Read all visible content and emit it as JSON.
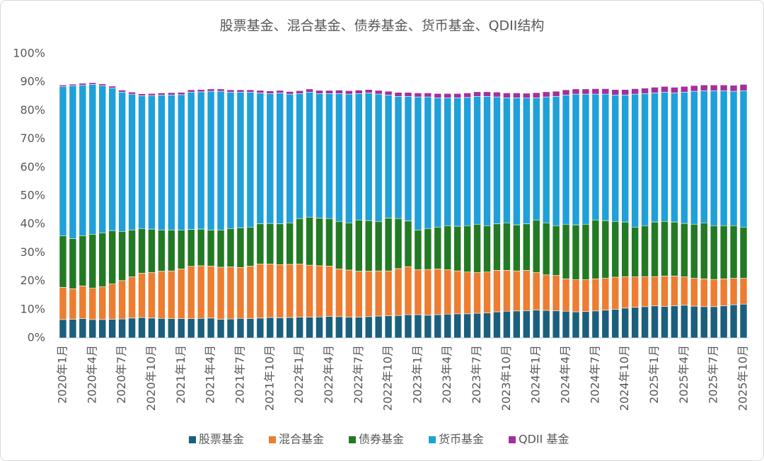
{
  "chart_data": {
    "type": "stacked-bar",
    "title": "股票基金、混合基金、债券基金、货币基金、QDII结构",
    "categories": [
      "2020年1月",
      null,
      null,
      "2020年4月",
      null,
      null,
      "2020年7月",
      null,
      null,
      "2020年10月",
      null,
      null,
      "2021年1月",
      null,
      null,
      "2021年4月",
      null,
      null,
      "2021年7月",
      null,
      null,
      "2021年10月",
      null,
      null,
      "2022年1月",
      null,
      null,
      "2022年4月",
      null,
      null,
      "2022年7月",
      null,
      null,
      "2022年10月",
      null,
      null,
      "2023年1月",
      null,
      null,
      "2023年4月",
      null,
      null,
      "2023年7月",
      null,
      null,
      "2023年10月",
      null,
      null,
      "2024年1月",
      null,
      null,
      "2024年4月",
      null,
      null,
      "2024年7月",
      null,
      null,
      "2024年10月",
      null,
      null,
      "2025年1月",
      null,
      null,
      "2025年4月",
      null,
      null,
      "2025年7月",
      null,
      null,
      "2025年10月"
    ],
    "series": [
      {
        "name": "股票基金",
        "color": "#1b5f7d",
        "values": [
          6.5,
          6.6,
          6.8,
          6.5,
          6.5,
          6.6,
          6.7,
          7.0,
          7.2,
          7.0,
          6.9,
          6.8,
          6.8,
          6.8,
          6.9,
          7.0,
          6.6,
          6.7,
          6.9,
          6.8,
          7.0,
          7.2,
          7.1,
          7.2,
          7.3,
          7.3,
          7.4,
          7.6,
          7.5,
          7.3,
          7.3,
          7.5,
          7.7,
          7.8,
          7.9,
          8.2,
          8.2,
          8.0,
          8.2,
          8.4,
          8.5,
          8.5,
          8.7,
          8.8,
          9.2,
          9.4,
          9.5,
          9.6,
          9.8,
          9.7,
          9.6,
          9.4,
          9.2,
          9.3,
          9.5,
          9.8,
          10.1,
          10.5,
          10.8,
          11.0,
          11.3,
          11.1,
          11.3,
          11.5,
          11.2,
          11.0,
          11.0,
          11.3,
          11.7,
          11.9
        ]
      },
      {
        "name": "混合基金",
        "color": "#ed7d31",
        "values": [
          11.3,
          10.7,
          11.5,
          11.0,
          11.5,
          12.4,
          13.5,
          14.5,
          15.6,
          16.0,
          16.6,
          16.8,
          17.5,
          18.4,
          18.5,
          18.3,
          18.3,
          18.3,
          17.9,
          18.5,
          19.0,
          18.8,
          18.7,
          18.7,
          18.7,
          18.3,
          18.0,
          17.7,
          16.8,
          16.6,
          16.2,
          16.0,
          15.9,
          15.8,
          16.5,
          16.9,
          15.8,
          16.1,
          16.1,
          15.6,
          15.1,
          14.7,
          14.3,
          14.4,
          14.6,
          14.4,
          14.1,
          14.2,
          13.2,
          12.5,
          12.4,
          11.4,
          11.3,
          11.2,
          11.3,
          11.2,
          11.3,
          11.1,
          10.7,
          10.6,
          10.3,
          10.7,
          10.5,
          10.0,
          9.8,
          9.8,
          9.6,
          9.5,
          9.3,
          9.1
        ]
      },
      {
        "name": "债券基金",
        "color": "#237a24",
        "values": [
          18.2,
          17.7,
          17.7,
          19.0,
          19.0,
          18.8,
          17.3,
          16.5,
          15.7,
          15.3,
          14.5,
          14.4,
          13.7,
          13.0,
          12.9,
          12.7,
          13.1,
          13.5,
          14.0,
          13.7,
          14.2,
          14.3,
          14.4,
          14.6,
          16.0,
          16.9,
          16.8,
          16.7,
          16.7,
          16.6,
          18.0,
          17.8,
          17.4,
          18.6,
          17.6,
          16.1,
          14.0,
          14.4,
          14.7,
          15.5,
          15.7,
          16.3,
          17.0,
          16.3,
          16.4,
          16.7,
          16.2,
          16.4,
          18.5,
          18.3,
          17.5,
          19.2,
          19.3,
          19.5,
          20.7,
          20.3,
          19.6,
          19.2,
          17.5,
          17.9,
          19.2,
          19.2,
          19.0,
          18.8,
          19.0,
          19.7,
          18.9,
          18.7,
          18.5,
          18.0
        ]
      },
      {
        "name": "货币基金",
        "color": "#1fa0d9",
        "values": [
          52.5,
          53.8,
          53.0,
          52.7,
          51.8,
          50.2,
          49.0,
          47.8,
          46.7,
          47.0,
          47.5,
          47.5,
          47.6,
          48.3,
          48.3,
          48.8,
          48.8,
          48.0,
          47.7,
          47.5,
          46.0,
          45.7,
          46.0,
          45.3,
          44.0,
          44.0,
          43.8,
          44.0,
          45.0,
          45.3,
          44.5,
          44.9,
          44.8,
          43.3,
          43.0,
          43.8,
          46.8,
          46.3,
          45.5,
          45.0,
          45.2,
          45.1,
          45.0,
          45.5,
          44.6,
          44.0,
          44.7,
          44.2,
          43.0,
          44.3,
          45.5,
          45.5,
          46.0,
          45.8,
          44.3,
          44.5,
          44.5,
          44.7,
          46.8,
          46.5,
          45.4,
          45.5,
          45.4,
          46.2,
          46.8,
          46.5,
          47.5,
          47.5,
          47.3,
          48.0
        ]
      },
      {
        "name": "QDII 基金",
        "color": "#a3309c",
        "values": [
          0.5,
          0.5,
          0.6,
          0.6,
          0.6,
          0.6,
          0.7,
          0.7,
          0.7,
          0.7,
          0.7,
          0.8,
          0.8,
          0.8,
          0.8,
          0.8,
          0.8,
          0.8,
          0.8,
          0.8,
          0.9,
          0.9,
          0.9,
          0.9,
          1.0,
          1.1,
          1.1,
          1.1,
          1.2,
          1.2,
          1.2,
          1.2,
          1.3,
          1.3,
          1.4,
          1.4,
          1.4,
          1.4,
          1.5,
          1.5,
          1.5,
          1.6,
          1.6,
          1.6,
          1.7,
          1.7,
          1.7,
          1.7,
          1.8,
          1.8,
          1.8,
          1.8,
          1.8,
          1.8,
          1.9,
          1.9,
          1.9,
          1.9,
          1.9,
          1.9,
          2.0,
          2.0,
          2.0,
          2.0,
          2.0,
          2.0,
          2.0,
          2.0,
          2.1,
          2.2
        ]
      }
    ],
    "ylim": [
      0,
      100
    ],
    "yticks": [
      {
        "value": 0,
        "label": "0%"
      },
      {
        "value": 10,
        "label": "10%"
      },
      {
        "value": 20,
        "label": "20%"
      },
      {
        "value": 30,
        "label": "30%"
      },
      {
        "value": 40,
        "label": "40%"
      },
      {
        "value": 50,
        "label": "50%"
      },
      {
        "value": 60,
        "label": "60%"
      },
      {
        "value": 70,
        "label": "70%"
      },
      {
        "value": 80,
        "label": "80%"
      },
      {
        "value": 90,
        "label": "90%"
      },
      {
        "value": 100,
        "label": "100%"
      }
    ],
    "grid": false,
    "legend": "bottom"
  }
}
